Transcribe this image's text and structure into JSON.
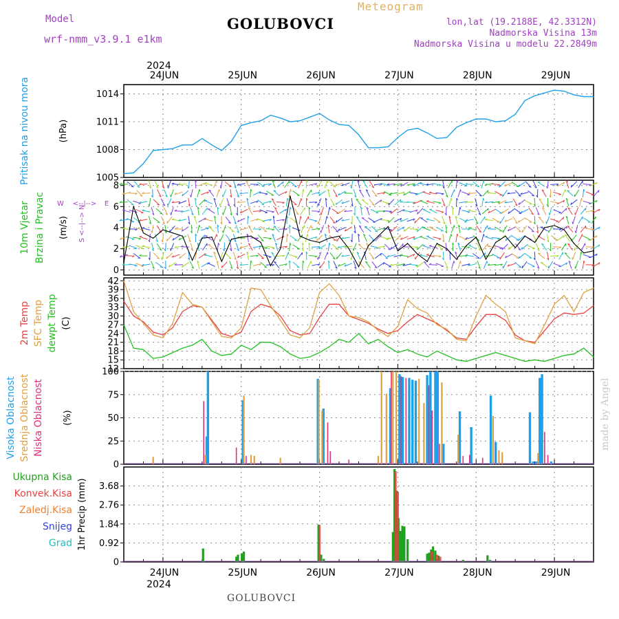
{
  "header": {
    "model_label": "Model",
    "model_name": "wrf-nmm_v3.9.1 e1km",
    "station": "GOLUBOVCI",
    "meteogram": "Meteogram",
    "coords": "lon,lat (19.2188E, 42.3312N)",
    "altitude": "Nadmorska Visina 13m",
    "model_altitude": "Nadmorska Visina u modelu 22.2849m"
  },
  "footer": {
    "station": "GOLUBOVCI",
    "credit": "made by Angel"
  },
  "colors": {
    "pressure": "#1ea0e8",
    "wind_label": "#22c020",
    "t2m": "#e84040",
    "sfc": "#e0a040",
    "dewpt": "#22c020",
    "cloud_high": "#1ea0e8",
    "cloud_mid": "#e0a040",
    "cloud_low": "#e0307a",
    "precip_total": "#22a020",
    "precip_conv": "#e84040",
    "precip_frozen": "#f08030",
    "precip_snow": "#3040e0",
    "precip_grad": "#20c0c0",
    "accent": "#a040c0"
  },
  "chart_data": [
    {
      "type": "line",
      "panel": "pressure",
      "ylabel_title": "Pritisak na nivou mora",
      "ylabel_unit": "(hPa)",
      "ylim": [
        1005,
        1015
      ],
      "yticks": [
        1005,
        1008,
        1011,
        1014
      ],
      "grid": true,
      "top_axis": {
        "year": "2024",
        "days": [
          "24JUN",
          "25JUN",
          "26JUN",
          "27JUN",
          "28JUN",
          "29JUN"
        ]
      },
      "x_hours": [
        0,
        3,
        6,
        9,
        12,
        15,
        18,
        21,
        24,
        27,
        30,
        33,
        36,
        39,
        42,
        45,
        48,
        51,
        54,
        57,
        60,
        63,
        66,
        69,
        72,
        75,
        78,
        81,
        84,
        87,
        90,
        93,
        96,
        99,
        102,
        105,
        108,
        111,
        114,
        117,
        120,
        123,
        126,
        129,
        132,
        135,
        138,
        141,
        144
      ],
      "values": [
        1005.4,
        1005.5,
        1006.5,
        1007.9,
        1008.0,
        1008.1,
        1008.5,
        1008.5,
        1009.2,
        1008.5,
        1007.9,
        1008.9,
        1010.6,
        1010.9,
        1011.1,
        1011.7,
        1011.4,
        1011.0,
        1011.1,
        1011.5,
        1011.9,
        1011.2,
        1010.7,
        1010.6,
        1009.6,
        1008.2,
        1008.2,
        1008.3,
        1009.3,
        1010.1,
        1010.3,
        1009.8,
        1009.2,
        1009.3,
        1010.4,
        1010.9,
        1011.3,
        1011.3,
        1011.0,
        1011.1,
        1011.8,
        1013.3,
        1013.8,
        1014.1,
        1014.4,
        1014.3,
        1013.9,
        1013.7,
        1013.7
      ]
    },
    {
      "type": "line",
      "panel": "wind",
      "ylabel_title": "10m Vjetar",
      "ylabel_title2": "Brzina i Pravac",
      "ylabel_unit": "(m/s)",
      "direction_legend": {
        "west": "W",
        "east": "E",
        "arrows": "<--|-->"
      },
      "direction_legend2": {
        "north": "N",
        "south": "S",
        "arrows": "<--|-->"
      },
      "ylim": [
        -0.5,
        8.5
      ],
      "yticks": [
        0,
        2,
        4,
        6,
        8
      ],
      "grid": true,
      "x_hours": [
        0,
        3,
        6,
        9,
        12,
        15,
        18,
        21,
        24,
        27,
        30,
        33,
        36,
        39,
        42,
        45,
        48,
        51,
        54,
        57,
        60,
        63,
        66,
        69,
        72,
        75,
        78,
        81,
        84,
        87,
        90,
        93,
        96,
        99,
        102,
        105,
        108,
        111,
        114,
        117,
        120,
        123,
        126,
        129,
        132,
        135,
        138,
        141,
        144
      ],
      "values": [
        0.7,
        6.0,
        3.5,
        3.0,
        3.8,
        3.5,
        3.2,
        0.9,
        3.0,
        3.1,
        0.8,
        2.9,
        3.1,
        3.2,
        2.6,
        0.4,
        2.0,
        7.0,
        3.2,
        2.8,
        2.6,
        3.0,
        3.2,
        2.0,
        0.3,
        2.3,
        3.2,
        4.1,
        1.8,
        2.5,
        1.5,
        0.8,
        2.5,
        2.0,
        1.0,
        2.3,
        3.1,
        1.0,
        2.6,
        3.2,
        2.1,
        3.2,
        2.6,
        4.0,
        4.2,
        3.8,
        2.5,
        1.6,
        1.8
      ]
    },
    {
      "type": "line",
      "panel": "temperature",
      "ylabel_series": [
        "2m Temp",
        "SFC Temp",
        "dewpt Temp"
      ],
      "ylabel_unit": "(C)",
      "ylim": [
        12,
        43
      ],
      "yticks": [
        12,
        15,
        18,
        21,
        24,
        27,
        30,
        33,
        36,
        39,
        42
      ],
      "grid": true,
      "x_hours": [
        0,
        3,
        6,
        9,
        12,
        15,
        18,
        21,
        24,
        27,
        30,
        33,
        36,
        39,
        42,
        45,
        48,
        51,
        54,
        57,
        60,
        63,
        66,
        69,
        72,
        75,
        78,
        81,
        84,
        87,
        90,
        93,
        96,
        99,
        102,
        105,
        108,
        111,
        114,
        117,
        120,
        123,
        126,
        129,
        132,
        135,
        138,
        141,
        144
      ],
      "series": [
        {
          "name": "2m Temp",
          "values": [
            35.0,
            30.0,
            28.0,
            24.5,
            23.5,
            26.0,
            31.5,
            33.5,
            33.0,
            28.5,
            24.0,
            23.0,
            24.5,
            31.5,
            34.0,
            33.0,
            30.0,
            25.0,
            23.5,
            24.0,
            29.5,
            34.0,
            34.0,
            30.0,
            28.8,
            27.5,
            25.5,
            24.0,
            25.0,
            28.0,
            30.5,
            29.0,
            27.5,
            25.0,
            22.5,
            22.0,
            26.5,
            30.5,
            30.5,
            28.5,
            23.5,
            21.5,
            21.0,
            25.0,
            29.0,
            31.0,
            30.5,
            31.0,
            33.5
          ]
        },
        {
          "name": "SFC Temp",
          "values": [
            42.0,
            31.5,
            27.5,
            23.5,
            22.5,
            27.5,
            38.0,
            34.0,
            33.0,
            28.0,
            23.0,
            22.5,
            26.0,
            39.5,
            39.0,
            33.5,
            28.5,
            23.5,
            22.5,
            26.0,
            38.0,
            41.0,
            37.0,
            30.0,
            29.5,
            28.0,
            25.0,
            23.0,
            26.5,
            35.5,
            32.5,
            31.0,
            27.0,
            25.5,
            22.0,
            21.5,
            30.0,
            37.0,
            34.0,
            31.5,
            22.5,
            21.5,
            20.5,
            27.0,
            34.0,
            37.0,
            31.5,
            38.0,
            39.5
          ]
        },
        {
          "name": "dewpt Temp",
          "values": [
            27.0,
            19.0,
            18.5,
            15.5,
            16.0,
            17.5,
            19.0,
            20.0,
            22.0,
            18.0,
            16.5,
            17.0,
            20.0,
            18.5,
            21.0,
            21.0,
            19.5,
            17.0,
            15.5,
            16.0,
            17.5,
            19.5,
            22.0,
            21.0,
            24.0,
            20.5,
            22.0,
            19.5,
            17.5,
            18.5,
            17.0,
            16.0,
            18.0,
            16.5,
            15.0,
            14.5,
            15.5,
            16.5,
            17.5,
            16.5,
            15.5,
            14.5,
            15.0,
            14.5,
            15.5,
            16.5,
            17.0,
            19.0,
            16.0
          ]
        }
      ]
    },
    {
      "type": "bar",
      "panel": "cloud",
      "ylabel_series": [
        "Visoka Oblacnost",
        "Srednja Oblacnost",
        "Niska Oblacnost"
      ],
      "ylabel_unit": "(%)",
      "ylim": [
        0,
        100
      ],
      "yticks": [
        0,
        25,
        50,
        75,
        100
      ],
      "grid": true,
      "bar_series": [
        {
          "name": "Visoka Oblacnost",
          "points": [
            [
              25.4,
              30
            ],
            [
              25.8,
              100
            ],
            [
              36.5,
              69
            ],
            [
              59.5,
              92
            ],
            [
              61.2,
              60
            ],
            [
              81.7,
              82
            ],
            [
              84.5,
              97
            ],
            [
              85.5,
              94
            ],
            [
              87.5,
              93
            ],
            [
              88.5,
              91
            ],
            [
              89.5,
              90
            ],
            [
              93.0,
              96
            ],
            [
              94.0,
              100
            ],
            [
              95.5,
              100
            ],
            [
              96.2,
              100
            ],
            [
              98.0,
              22
            ],
            [
              103.0,
              57
            ],
            [
              106.5,
              40
            ],
            [
              112.5,
              74
            ],
            [
              114.0,
              24
            ],
            [
              124.5,
              56
            ],
            [
              125.5,
              3
            ],
            [
              126.5,
              3
            ],
            [
              127.5,
              93
            ],
            [
              128.2,
              97
            ],
            [
              131.0,
              3
            ]
          ]
        },
        {
          "name": "Srednja Oblacnost",
          "points": [
            [
              9.0,
              8
            ],
            [
              25.0,
              10
            ],
            [
              36.8,
              74
            ],
            [
              39.0,
              10
            ],
            [
              40.0,
              9
            ],
            [
              48.0,
              7
            ],
            [
              59.8,
              91
            ],
            [
              60.8,
              58
            ],
            [
              78.0,
              9
            ],
            [
              79.0,
              100
            ],
            [
              80.5,
              76
            ],
            [
              82.5,
              100
            ],
            [
              83.5,
              100
            ],
            [
              90.5,
              92
            ],
            [
              92.0,
              66
            ],
            [
              97.5,
              88
            ],
            [
              102.5,
              32
            ],
            [
              113.2,
              52
            ],
            [
              115.0,
              15
            ],
            [
              116.0,
              13
            ],
            [
              127.0,
              12
            ]
          ]
        },
        {
          "name": "Niska Oblacnost",
          "points": [
            [
              24.5,
              68
            ],
            [
              34.5,
              18
            ],
            [
              37.5,
              9
            ],
            [
              62.5,
              45
            ],
            [
              63.3,
              14
            ],
            [
              69.0,
              5
            ],
            [
              82.0,
              100
            ],
            [
              85.0,
              95
            ],
            [
              86.5,
              93
            ],
            [
              93.5,
              85
            ],
            [
              94.5,
              58
            ],
            [
              96.8,
              22
            ],
            [
              104.0,
              9
            ],
            [
              106.0,
              10
            ],
            [
              110.0,
              7
            ],
            [
              129.0,
              35
            ],
            [
              130.0,
              10
            ]
          ]
        }
      ]
    },
    {
      "type": "bar",
      "panel": "precip",
      "legend": [
        "Ukupna Kisa",
        "Konvek.Kisa",
        "Zaledj.Kisa",
        "Snijeg",
        "Grad"
      ],
      "ylabel_unit": "1hr Precip (mm)",
      "ylim": [
        0,
        4.6
      ],
      "yticks": [
        0,
        0.92,
        1.84,
        2.76,
        3.68
      ],
      "grid": true,
      "bottom_axis": {
        "year": "2024",
        "days": [
          "24JUN",
          "25JUN",
          "26JUN",
          "27JUN",
          "28JUN",
          "29JUN"
        ]
      },
      "bar_series": [
        {
          "name": "Ukupna Kisa",
          "points": [
            [
              24.3,
              0.65
            ],
            [
              34.5,
              0.25
            ],
            [
              35.0,
              0.35
            ],
            [
              36.2,
              0.42
            ],
            [
              36.8,
              0.5
            ],
            [
              59.7,
              1.81
            ],
            [
              60.5,
              0.35
            ],
            [
              61.3,
              0.15
            ],
            [
              82.5,
              1.45
            ],
            [
              83.0,
              4.5
            ],
            [
              83.6,
              3.45
            ],
            [
              84.2,
              2.12
            ],
            [
              84.8,
              1.5
            ],
            [
              85.4,
              1.75
            ],
            [
              86.0,
              1.72
            ],
            [
              87.0,
              1.1
            ],
            [
              93.0,
              0.4
            ],
            [
              93.6,
              0.45
            ],
            [
              94.2,
              0.6
            ],
            [
              94.8,
              0.75
            ],
            [
              95.5,
              0.55
            ],
            [
              96.5,
              0.3
            ],
            [
              104.0,
              0.1
            ],
            [
              111.5,
              0.32
            ],
            [
              112.3,
              0.1
            ]
          ]
        },
        {
          "name": "Konvek.Kisa",
          "points": [
            [
              60.0,
              1.79
            ],
            [
              83.3,
              4.4
            ],
            [
              84.0,
              3.4
            ],
            [
              94.4,
              0.5
            ],
            [
              96.0,
              0.35
            ],
            [
              97.0,
              0.25
            ]
          ]
        }
      ]
    }
  ]
}
